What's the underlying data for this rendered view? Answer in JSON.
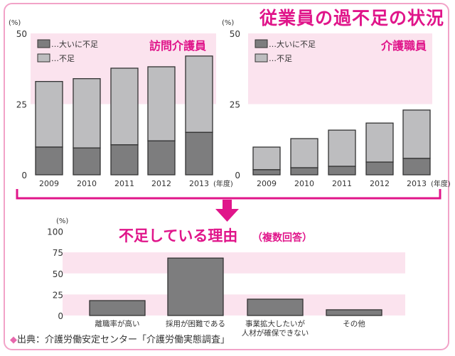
{
  "title": "従業員の過不足の状況",
  "accent_color": "#e0158a",
  "band_color": "#fbe3ee",
  "dark_color": "#7d7d7e",
  "light_color": "#bdbdbf",
  "chart_data": [
    {
      "type": "bar",
      "stacked": true,
      "title": "訪問介護員",
      "ylabel": "(%)",
      "xlabel_suffix": "(年度)",
      "ylim": [
        0,
        50
      ],
      "yticks": [
        "0",
        "25",
        "50"
      ],
      "categories": [
        "2009",
        "2010",
        "2011",
        "2012",
        "2013"
      ],
      "legend": [
        "…大いに不足",
        "…不足"
      ],
      "legend_position": "top-left",
      "series": [
        {
          "name": "大いに不足",
          "values": [
            9.8,
            9.5,
            10.6,
            12.0,
            15.0
          ]
        },
        {
          "name": "不足",
          "values": [
            23.2,
            24.5,
            27.1,
            26.2,
            27.0
          ]
        }
      ]
    },
    {
      "type": "bar",
      "stacked": true,
      "title": "介護職員",
      "ylabel": "(%)",
      "xlabel_suffix": "(年度)",
      "ylim": [
        0,
        50
      ],
      "yticks": [
        "0",
        "25",
        "50"
      ],
      "categories": [
        "2009",
        "2010",
        "2011",
        "2012",
        "2013"
      ],
      "legend": [
        "…大いに不足",
        "…不足"
      ],
      "legend_position": "top-left",
      "series": [
        {
          "name": "大いに不足",
          "values": [
            1.8,
            2.5,
            3.0,
            4.5,
            5.8
          ]
        },
        {
          "name": "不足",
          "values": [
            8.0,
            10.3,
            12.8,
            13.8,
            17.1
          ]
        }
      ]
    },
    {
      "type": "bar",
      "title": "不足している理由",
      "subtitle": "（複数回答）",
      "ylabel": "(%)",
      "ylim": [
        0,
        100
      ],
      "yticks": [
        "0",
        "25",
        "50",
        "75",
        "100"
      ],
      "categories": [
        "離職率が高い",
        "採用が困難である",
        "事業拡大したいが\n人材が確保できない",
        "その他"
      ],
      "values": [
        17.7,
        68.2,
        19.4,
        6.8
      ]
    }
  ],
  "source": {
    "marker": "◆",
    "text": "出典：介護労働安定センター「介護労働実態調査」"
  }
}
